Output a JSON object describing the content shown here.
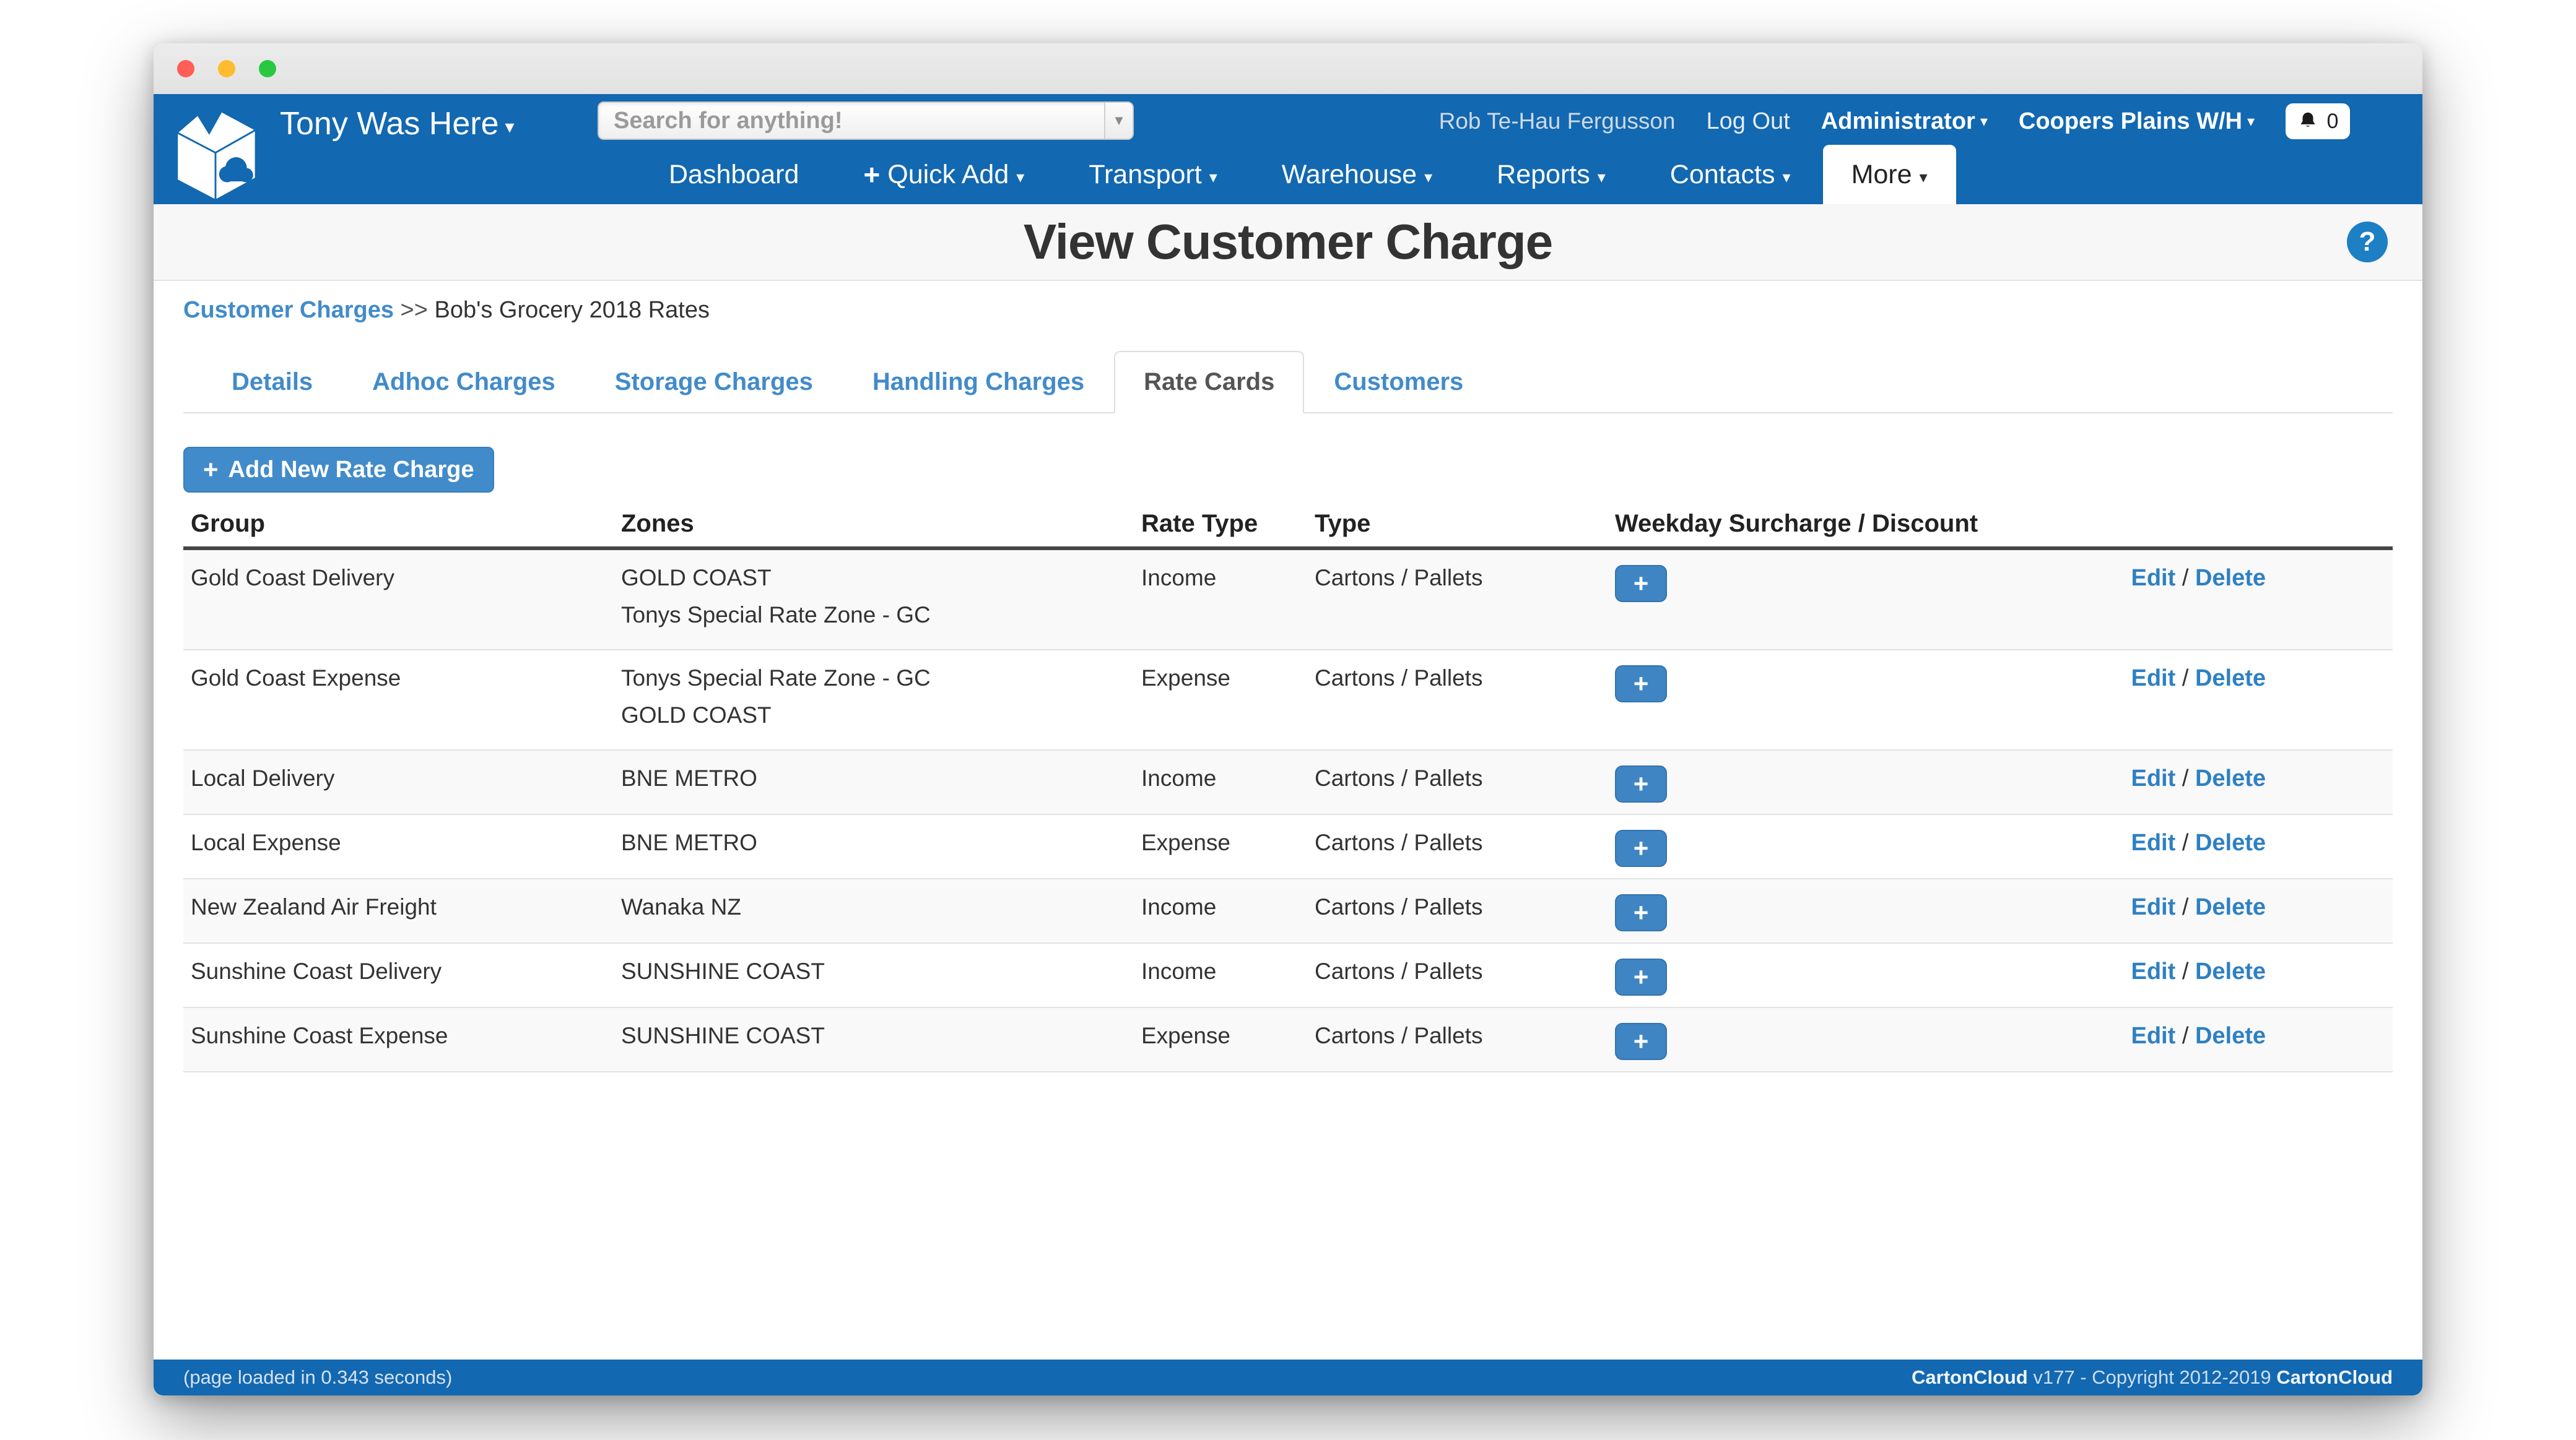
{
  "navbar": {
    "brand": "Tony Was Here",
    "search": {
      "placeholder": "Search for anything!"
    },
    "user": {
      "name": "Rob Te-Hau Fergusson",
      "logout": "Log Out",
      "role": "Administrator",
      "warehouse": "Coopers Plains W/H",
      "notification_count": "0"
    },
    "menu": [
      {
        "label": "Dashboard",
        "caret": false,
        "plus": false,
        "active": false
      },
      {
        "label": "Quick Add",
        "caret": true,
        "plus": true,
        "active": false
      },
      {
        "label": "Transport",
        "caret": true,
        "plus": false,
        "active": false
      },
      {
        "label": "Warehouse",
        "caret": true,
        "plus": false,
        "active": false
      },
      {
        "label": "Reports",
        "caret": true,
        "plus": false,
        "active": false
      },
      {
        "label": "Contacts",
        "caret": true,
        "plus": false,
        "active": false
      },
      {
        "label": "More",
        "caret": true,
        "plus": false,
        "active": true
      }
    ]
  },
  "page": {
    "title": "View Customer Charge",
    "help_glyph": "?"
  },
  "breadcrumb": {
    "link": "Customer Charges",
    "separator": ">>",
    "current": "Bob's Grocery 2018 Rates"
  },
  "tabs": [
    {
      "label": "Details",
      "active": false
    },
    {
      "label": "Adhoc Charges",
      "active": false
    },
    {
      "label": "Storage Charges",
      "active": false
    },
    {
      "label": "Handling Charges",
      "active": false
    },
    {
      "label": "Rate Cards",
      "active": true
    },
    {
      "label": "Customers",
      "active": false
    }
  ],
  "toolbar": {
    "add_plus": "+",
    "add_label": "Add New Rate Charge"
  },
  "table": {
    "columns": [
      "Group",
      "Zones",
      "Rate Type",
      "Type",
      "Weekday Surcharge / Discount",
      ""
    ],
    "surcharge_button": "+",
    "actions": {
      "edit": "Edit",
      "separator": "/",
      "delete": "Delete"
    },
    "rows": [
      {
        "group": "Gold Coast Delivery",
        "zones": [
          "GOLD COAST",
          "Tonys Special Rate Zone - GC"
        ],
        "rate_type": "Income",
        "type": "Cartons / Pallets"
      },
      {
        "group": "Gold Coast Expense",
        "zones": [
          "Tonys Special Rate Zone - GC",
          "GOLD COAST"
        ],
        "rate_type": "Expense",
        "type": "Cartons / Pallets"
      },
      {
        "group": "Local Delivery",
        "zones": [
          "BNE METRO"
        ],
        "rate_type": "Income",
        "type": "Cartons / Pallets"
      },
      {
        "group": "Local Expense",
        "zones": [
          "BNE METRO"
        ],
        "rate_type": "Expense",
        "type": "Cartons / Pallets"
      },
      {
        "group": "New Zealand Air Freight",
        "zones": [
          "Wanaka NZ"
        ],
        "rate_type": "Income",
        "type": "Cartons / Pallets"
      },
      {
        "group": "Sunshine Coast Delivery",
        "zones": [
          "SUNSHINE COAST"
        ],
        "rate_type": "Income",
        "type": "Cartons / Pallets"
      },
      {
        "group": "Sunshine Coast Expense",
        "zones": [
          "SUNSHINE COAST"
        ],
        "rate_type": "Expense",
        "type": "Cartons / Pallets"
      }
    ]
  },
  "footer": {
    "left": "(page loaded in 0.343 seconds)",
    "right_brand": "CartonCloud",
    "right_middle": " v177 - Copyright 2012-2019 ",
    "right_brand2": "CartonCloud"
  },
  "colors": {
    "navbar_blue": "#1268b1",
    "link_blue": "#428bca",
    "button_blue": "#428bca",
    "active_tab_text": "#555555"
  }
}
